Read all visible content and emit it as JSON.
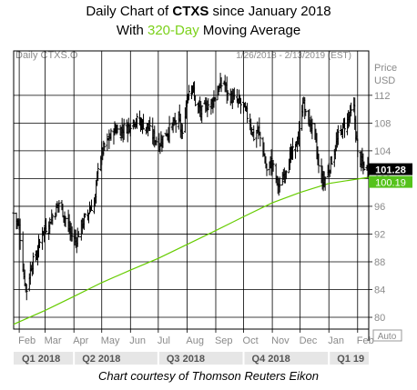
{
  "title": {
    "line1_prefix": "Daily Chart of ",
    "line1_symbol": "CTXS",
    "line1_suffix": " since January 2018",
    "line2_prefix": "With ",
    "line2_accent": "320-Day",
    "line2_suffix": " Moving Average"
  },
  "header": {
    "left": "Daily CTXS.O",
    "right": "1/26/2018 - 2/13/2019 (EST)"
  },
  "axis_header": [
    "Price",
    "USD"
  ],
  "badges": {
    "last_price": "101.28",
    "ma_value": "100.19"
  },
  "auto_label": "Auto",
  "credit": "Chart courtesy of Thomson Reuters Eikon",
  "colors": {
    "price": "#000000",
    "ma": "#66cc00",
    "grid": "#000000",
    "badge_price": "#000000",
    "badge_ma": "#55c21b"
  },
  "chart_data": {
    "type": "line",
    "y_ticks": [
      80,
      84,
      88,
      92,
      96,
      100,
      104,
      108,
      112
    ],
    "ylim": [
      78.3,
      118.4
    ],
    "xlim": [
      "2018-01-26",
      "2019-02-13"
    ],
    "month_labels": [
      {
        "label": "Feb",
        "date": "2018-02-01"
      },
      {
        "label": "Mar",
        "date": "2018-03-01"
      },
      {
        "label": "Apr",
        "date": "2018-04-01"
      },
      {
        "label": "May",
        "date": "2018-05-01"
      },
      {
        "label": "Jun",
        "date": "2018-06-01"
      },
      {
        "label": "Jul",
        "date": "2018-07-01"
      },
      {
        "label": "Aug",
        "date": "2018-08-01"
      },
      {
        "label": "Sep",
        "date": "2018-09-01"
      },
      {
        "label": "Oct",
        "date": "2018-10-01"
      },
      {
        "label": "Nov",
        "date": "2018-11-01"
      },
      {
        "label": "Dec",
        "date": "2018-12-01"
      },
      {
        "label": "Jan",
        "date": "2019-01-01"
      },
      {
        "label": "Feb",
        "date": "2019-02-01"
      }
    ],
    "quarter_labels": [
      {
        "label": "Q1 2018",
        "start": "2018-01-26",
        "end": "2018-04-01"
      },
      {
        "label": "Q2 2018",
        "start": "2018-04-01",
        "end": "2018-07-01"
      },
      {
        "label": "Q3 2018",
        "start": "2018-07-01",
        "end": "2018-10-01"
      },
      {
        "label": "Q4 2018",
        "start": "2018-10-01",
        "end": "2019-01-01"
      },
      {
        "label": "Q1 19",
        "start": "2019-01-01",
        "end": "2019-02-13"
      }
    ],
    "grid": true,
    "series": [
      {
        "name": "CTXS",
        "style": "ohlc",
        "points": [
          [
            "2018-01-26",
            95.0
          ],
          [
            "2018-02-01",
            93.0
          ],
          [
            "2018-02-06",
            86.0
          ],
          [
            "2018-02-09",
            84.0
          ],
          [
            "2018-02-14",
            87.5
          ],
          [
            "2018-02-20",
            89.0
          ],
          [
            "2018-02-26",
            92.5
          ],
          [
            "2018-03-02",
            93.0
          ],
          [
            "2018-03-07",
            94.0
          ],
          [
            "2018-03-12",
            95.5
          ],
          [
            "2018-03-16",
            96.5
          ],
          [
            "2018-03-21",
            95.0
          ],
          [
            "2018-03-26",
            93.0
          ],
          [
            "2018-03-29",
            92.0
          ],
          [
            "2018-04-03",
            91.0
          ],
          [
            "2018-04-10",
            93.5
          ],
          [
            "2018-04-16",
            95.0
          ],
          [
            "2018-04-20",
            96.0
          ],
          [
            "2018-04-24",
            97.0
          ],
          [
            "2018-04-27",
            102.0
          ],
          [
            "2018-05-02",
            104.0
          ],
          [
            "2018-05-08",
            105.5
          ],
          [
            "2018-05-14",
            107.0
          ],
          [
            "2018-05-21",
            107.0
          ],
          [
            "2018-05-29",
            107.5
          ],
          [
            "2018-06-05",
            108.5
          ],
          [
            "2018-06-12",
            108.0
          ],
          [
            "2018-06-19",
            107.5
          ],
          [
            "2018-06-26",
            106.0
          ],
          [
            "2018-07-02",
            105.0
          ],
          [
            "2018-07-09",
            106.5
          ],
          [
            "2018-07-16",
            107.5
          ],
          [
            "2018-07-23",
            108.5
          ],
          [
            "2018-07-27",
            106.0
          ],
          [
            "2018-08-01",
            112.0
          ],
          [
            "2018-08-06",
            114.0
          ],
          [
            "2018-08-10",
            111.0
          ],
          [
            "2018-08-16",
            109.5
          ],
          [
            "2018-08-22",
            110.5
          ],
          [
            "2018-08-28",
            111.0
          ],
          [
            "2018-09-04",
            113.0
          ],
          [
            "2018-09-10",
            114.0
          ],
          [
            "2018-09-14",
            112.0
          ],
          [
            "2018-09-20",
            111.5
          ],
          [
            "2018-09-26",
            111.0
          ],
          [
            "2018-10-02",
            110.0
          ],
          [
            "2018-10-08",
            108.0
          ],
          [
            "2018-10-12",
            106.0
          ],
          [
            "2018-10-17",
            107.0
          ],
          [
            "2018-10-22",
            104.0
          ],
          [
            "2018-10-26",
            101.0
          ],
          [
            "2018-10-31",
            102.5
          ],
          [
            "2018-11-05",
            100.0
          ],
          [
            "2018-11-09",
            98.5
          ],
          [
            "2018-11-14",
            101.0
          ],
          [
            "2018-11-20",
            103.0
          ],
          [
            "2018-11-26",
            104.5
          ],
          [
            "2018-11-30",
            106.5
          ],
          [
            "2018-12-04",
            111.5
          ],
          [
            "2018-12-07",
            109.0
          ],
          [
            "2018-12-12",
            108.0
          ],
          [
            "2018-12-17",
            106.0
          ],
          [
            "2018-12-21",
            101.5
          ],
          [
            "2018-12-26",
            99.5
          ],
          [
            "2018-12-31",
            101.0
          ],
          [
            "2019-01-07",
            104.0
          ],
          [
            "2019-01-11",
            106.0
          ],
          [
            "2019-01-17",
            107.5
          ],
          [
            "2019-01-23",
            109.0
          ],
          [
            "2019-01-28",
            110.0
          ],
          [
            "2019-02-01",
            103.5
          ],
          [
            "2019-02-06",
            102.0
          ],
          [
            "2019-02-13",
            101.28
          ]
        ]
      },
      {
        "name": "320-Day Moving Average",
        "style": "line",
        "points": [
          [
            "2018-01-26",
            79.0
          ],
          [
            "2018-03-01",
            81.0
          ],
          [
            "2018-04-01",
            83.0
          ],
          [
            "2018-05-01",
            85.0
          ],
          [
            "2018-06-01",
            86.8
          ],
          [
            "2018-07-01",
            88.5
          ],
          [
            "2018-08-01",
            90.5
          ],
          [
            "2018-09-01",
            92.5
          ],
          [
            "2018-10-01",
            94.5
          ],
          [
            "2018-11-01",
            96.5
          ],
          [
            "2018-12-01",
            98.0
          ],
          [
            "2019-01-01",
            99.3
          ],
          [
            "2019-02-13",
            100.19
          ]
        ]
      }
    ]
  }
}
